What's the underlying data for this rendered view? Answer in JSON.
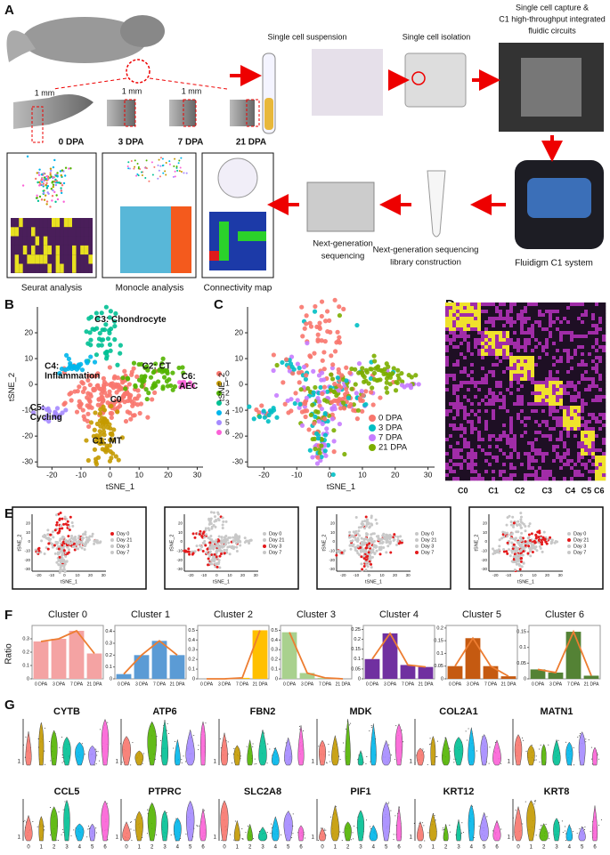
{
  "panel_labels": [
    "A",
    "B",
    "C",
    "D",
    "E",
    "F",
    "G"
  ],
  "panel_a": {
    "limb_scale": "1 mm",
    "stages": [
      "0 DPA",
      "3 DPA",
      "7 DPA",
      "21 DPA"
    ],
    "suspension": "Single cell suspension",
    "isolation": "Single cell isolation",
    "capture": [
      "Single cell capture &",
      "C1 high-throughput integrated",
      "fluidic circuits"
    ],
    "system": "Fluidigm C1 system",
    "library": [
      "Next-generation sequencing",
      "library construction"
    ],
    "sequencing": [
      "Next-generation",
      "sequencing"
    ],
    "analyses": [
      "Seurat analysis",
      "Monocle analysis",
      "Connectivity map"
    ]
  },
  "panel_b": {
    "xlabel": "tSNE_1",
    "ylabel": "tSNE_2",
    "xlim": [
      -25,
      32
    ],
    "ylim": [
      -32,
      30
    ],
    "xticks": [
      -20,
      -10,
      0,
      10,
      20,
      30
    ],
    "yticks": [
      -30,
      -20,
      -10,
      0,
      10,
      20
    ],
    "cluster_labels": [
      [
        "C0"
      ],
      [
        "C1: MT"
      ],
      [
        "C2: CT"
      ],
      [
        "C3: Chondrocyte"
      ],
      [
        "C4:",
        "Inflammation"
      ],
      [
        "C5:",
        "Cycling"
      ],
      [
        "C6:",
        "AEC"
      ]
    ],
    "legend": [
      "0",
      "1",
      "2",
      "3",
      "4",
      "5",
      "6"
    ],
    "colors": [
      "#f8766d",
      "#c49a00",
      "#53b400",
      "#00c094",
      "#00b6eb",
      "#a58aff",
      "#fb61d7"
    ]
  },
  "panel_c": {
    "legend": [
      "0 DPA",
      "3 DPA",
      "7 DPA",
      "21 DPA"
    ],
    "colors": [
      "#f8766d",
      "#00bfc4",
      "#c77cff",
      "#7cae00"
    ]
  },
  "panel_d": {
    "clusters": [
      "C0",
      "C1",
      "C2",
      "C3",
      "C4",
      "C5",
      "C6"
    ]
  },
  "panel_e": {
    "legend": [
      "Day 0",
      "Day 21",
      "Day 3",
      "Day 7"
    ],
    "highlight": [
      0,
      2,
      3,
      1
    ],
    "highlight_color": "#e41a1c"
  },
  "panel_f": {
    "ylabel": "Ratio",
    "categories": [
      "0 DPA",
      "3 DPA",
      "7 DPA",
      "21 DPA"
    ],
    "line_color": "#ed7d31",
    "charts": [
      {
        "title": "Cluster 0",
        "color": "#f4a3a3",
        "values": [
          0.28,
          0.3,
          0.36,
          0.19
        ],
        "ylim": [
          0,
          0.4
        ],
        "yticks": [
          0,
          0.1,
          0.2,
          0.3
        ]
      },
      {
        "title": "Cluster 1",
        "color": "#5b9bd5",
        "values": [
          0.04,
          0.2,
          0.32,
          0.2
        ],
        "ylim": [
          0,
          0.45
        ],
        "yticks": [
          0,
          0.1,
          0.2,
          0.3,
          0.4
        ]
      },
      {
        "title": "Cluster 2",
        "color": "#ffc000",
        "values": [
          0,
          0,
          0.01,
          0.5
        ],
        "ylim": [
          0,
          0.55
        ],
        "yticks": [
          0,
          0.1,
          0.2,
          0.3,
          0.4,
          0.5
        ]
      },
      {
        "title": "Cluster 3",
        "color": "#a9d18e",
        "values": [
          0.48,
          0.06,
          0.01,
          0
        ],
        "ylim": [
          0,
          0.55
        ],
        "yticks": [
          0,
          0.1,
          0.2,
          0.3,
          0.4,
          0.5
        ]
      },
      {
        "title": "Cluster 4",
        "color": "#7030a0",
        "values": [
          0.1,
          0.23,
          0.07,
          0.06
        ],
        "ylim": [
          0,
          0.27
        ],
        "yticks": [
          0,
          0.05,
          0.1,
          0.15,
          0.2,
          0.25
        ]
      },
      {
        "title": "Cluster 5",
        "color": "#c55a11",
        "values": [
          0.05,
          0.16,
          0.05,
          0.01
        ],
        "ylim": [
          0,
          0.21
        ],
        "yticks": [
          0,
          0.05,
          0.1,
          0.15,
          0.2
        ]
      },
      {
        "title": "Cluster 6",
        "color": "#548235",
        "values": [
          0.03,
          0.02,
          0.15,
          0.01
        ],
        "ylim": [
          0,
          0.17
        ],
        "yticks": [
          0,
          0.05,
          0.1,
          0.15
        ]
      }
    ]
  },
  "panel_g": {
    "genes": [
      "CYTB",
      "ATP6",
      "FBN2",
      "MDK",
      "COL2A1",
      "MATN1",
      "CCL5",
      "PTPRC",
      "SLC2A8",
      "PIF1",
      "KRT12",
      "KRT8"
    ],
    "xticks": [
      "0",
      "1",
      "2",
      "3",
      "4",
      "5",
      "6"
    ],
    "yticks": [
      1
    ]
  }
}
